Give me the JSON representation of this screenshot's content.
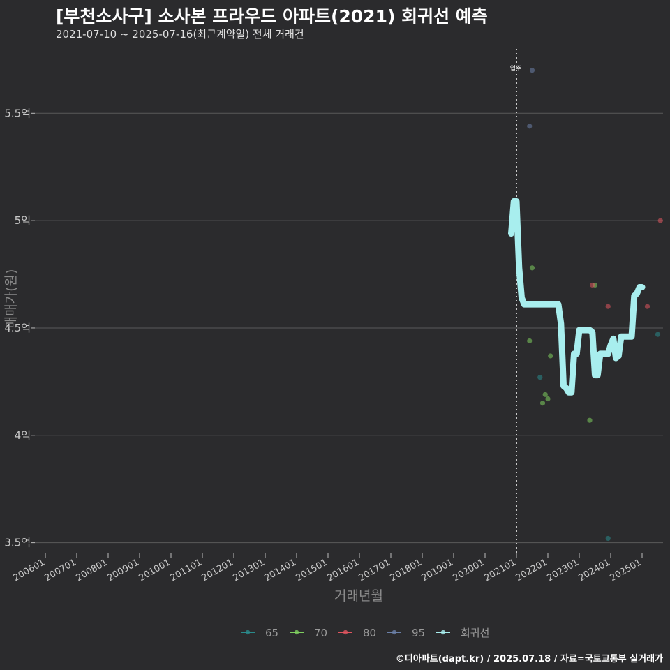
{
  "header": {
    "title": "[부천소사구] 소사본 프라우드 아파트(2021) 회귀선 예측",
    "subtitle": "2021-07-10 ~ 2025-07-16(최근계약일) 전체 거래건"
  },
  "caption": "©디아파트(dapt.kr) / 2025.07.18 / 자료=국토교통부 실거래가",
  "colors": {
    "background": "#2b2b2d",
    "grid": "#5a5a5a",
    "s65": "#2a8b8c",
    "s70": "#7fcf5f",
    "s80": "#e0555f",
    "s95": "#6b80a8",
    "regression": "#a8eeee"
  },
  "chart_data": {
    "type": "scatter",
    "title": "[부천소사구] 소사본 프라우드 아파트(2021) 회귀선 예측",
    "subtitle": "2021-07-10 ~ 2025-07-16(최근계약일) 전체 거래건",
    "xlabel": "거래년월",
    "ylabel": "매매가(원)",
    "x_unit": "months since 2006-01",
    "xlim": [
      -4,
      236
    ],
    "ylim": [
      3.45,
      5.8
    ],
    "grid": true,
    "legend_position": "bottom",
    "y_ticks": [
      {
        "value": 3.5,
        "label": "3.5억"
      },
      {
        "value": 4.0,
        "label": "4억"
      },
      {
        "value": 4.5,
        "label": "4.5억"
      },
      {
        "value": 5.0,
        "label": "5억"
      },
      {
        "value": 5.5,
        "label": "5.5억"
      }
    ],
    "x_ticks": [
      {
        "value": 0,
        "label": "200601"
      },
      {
        "value": 12,
        "label": "200701"
      },
      {
        "value": 24,
        "label": "200801"
      },
      {
        "value": 36,
        "label": "200901"
      },
      {
        "value": 48,
        "label": "201001"
      },
      {
        "value": 60,
        "label": "201101"
      },
      {
        "value": 72,
        "label": "201201"
      },
      {
        "value": 84,
        "label": "201301"
      },
      {
        "value": 96,
        "label": "201401"
      },
      {
        "value": 108,
        "label": "201501"
      },
      {
        "value": 120,
        "label": "201601"
      },
      {
        "value": 132,
        "label": "201701"
      },
      {
        "value": 144,
        "label": "201801"
      },
      {
        "value": 156,
        "label": "201901"
      },
      {
        "value": 168,
        "label": "202001"
      },
      {
        "value": 180,
        "label": "202101"
      },
      {
        "value": 192,
        "label": "202201"
      },
      {
        "value": 204,
        "label": "202301"
      },
      {
        "value": 216,
        "label": "202401"
      },
      {
        "value": 228,
        "label": "202501"
      }
    ],
    "annotation": {
      "x": 180,
      "label": "입주"
    },
    "series": [
      {
        "name": "65",
        "color": "#2a8b8c",
        "points": [
          [
            189,
            4.27
          ],
          [
            215,
            3.52
          ],
          [
            234,
            4.47
          ]
        ]
      },
      {
        "name": "70",
        "color": "#7fcf5f",
        "points": [
          [
            186,
            4.78
          ],
          [
            185,
            4.44
          ],
          [
            191,
            4.19
          ],
          [
            190,
            4.15
          ],
          [
            192,
            4.17
          ],
          [
            193,
            4.37
          ],
          [
            210,
            4.7
          ],
          [
            208,
            4.07
          ]
        ]
      },
      {
        "name": "80",
        "color": "#e0555f",
        "points": [
          [
            209,
            4.7
          ],
          [
            215,
            4.6
          ],
          [
            230,
            4.6
          ],
          [
            235,
            5.0
          ]
        ]
      },
      {
        "name": "95",
        "color": "#6b80a8",
        "points": [
          [
            186,
            5.7
          ],
          [
            185,
            5.44
          ]
        ]
      }
    ],
    "regression": {
      "name": "회귀선",
      "color": "#a8eeee",
      "points": [
        [
          178,
          4.94
        ],
        [
          179,
          5.09
        ],
        [
          180,
          5.09
        ],
        [
          181,
          4.78
        ],
        [
          182,
          4.64
        ],
        [
          183,
          4.61
        ],
        [
          196,
          4.61
        ],
        [
          197,
          4.52
        ],
        [
          198,
          4.23
        ],
        [
          199,
          4.22
        ],
        [
          200,
          4.2
        ],
        [
          201,
          4.2
        ],
        [
          202,
          4.38
        ],
        [
          203,
          4.38
        ],
        [
          204,
          4.49
        ],
        [
          208,
          4.49
        ],
        [
          209,
          4.48
        ],
        [
          210,
          4.28
        ],
        [
          211,
          4.28
        ],
        [
          212,
          4.38
        ],
        [
          215,
          4.38
        ],
        [
          216,
          4.42
        ],
        [
          217,
          4.45
        ],
        [
          218,
          4.36
        ],
        [
          219,
          4.37
        ],
        [
          220,
          4.46
        ],
        [
          224,
          4.46
        ],
        [
          225,
          4.65
        ],
        [
          226,
          4.66
        ],
        [
          227,
          4.69
        ],
        [
          228,
          4.69
        ]
      ]
    }
  }
}
